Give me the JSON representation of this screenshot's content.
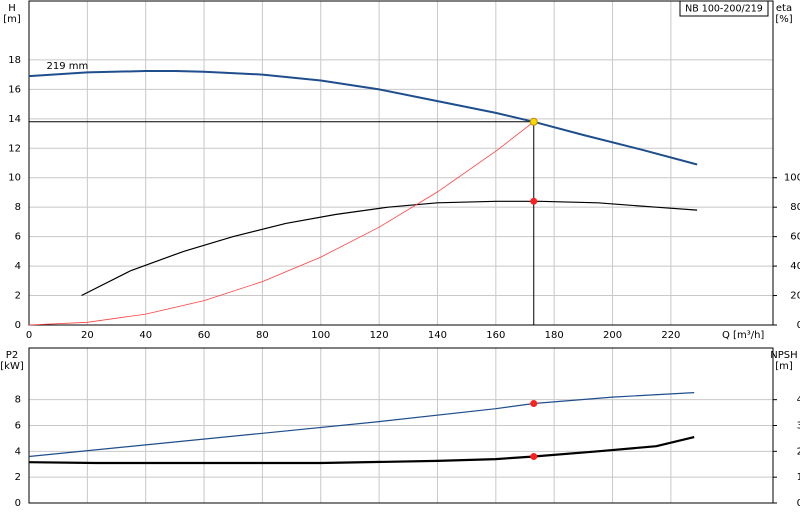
{
  "chart_data": [
    {
      "type": "line",
      "title": "NB 100-200/219",
      "x_label": "Q [m³/h]",
      "y_label": "H",
      "y_unit": "[m]",
      "y2_label": "eta",
      "y2_unit": "[%]",
      "annotation": {
        "text": "219 mm",
        "x": 6,
        "y": 17.6
      },
      "xlim": [
        0,
        255
      ],
      "xticks": [
        0,
        20,
        40,
        60,
        80,
        100,
        120,
        140,
        160,
        180,
        200,
        220
      ],
      "ylim": [
        0,
        22
      ],
      "yticks": [
        0,
        2,
        4,
        6,
        8,
        10,
        12,
        14,
        16,
        18
      ],
      "y2lim": [
        0,
        220
      ],
      "y2ticks": [
        0,
        20,
        40,
        60,
        80,
        100
      ],
      "grid": true,
      "series": [
        {
          "color": "#1f4e8c",
          "width": 2,
          "x": [
            0,
            20,
            40,
            50,
            60,
            80,
            100,
            120,
            140,
            160,
            173,
            190,
            210,
            229
          ],
          "values": [
            16.9,
            17.15,
            17.25,
            17.25,
            17.2,
            17.0,
            16.6,
            16.0,
            15.2,
            14.4,
            13.8,
            12.9,
            11.9,
            10.9
          ]
        },
        {
          "color": "#000000",
          "width": 1.2,
          "axis": "y2",
          "x": [
            18,
            35,
            53,
            70,
            88,
            105,
            123,
            140,
            160,
            175,
            195,
            215,
            229
          ],
          "values": [
            20,
            37,
            50,
            60,
            69,
            75,
            80,
            83,
            84,
            84,
            83,
            80,
            78
          ]
        },
        {
          "color": "#ff4040",
          "width": 0.8,
          "x": [
            0,
            20,
            40,
            60,
            80,
            100,
            120,
            140,
            160,
            173
          ],
          "values": [
            0,
            0.18,
            0.74,
            1.66,
            2.95,
            4.61,
            6.64,
            9.04,
            11.8,
            13.8
          ]
        }
      ],
      "duty_lines": {
        "x": 173,
        "y": 13.8
      },
      "points": [
        {
          "x": 173,
          "y": 13.8,
          "color": "#ffd700"
        },
        {
          "x": 173,
          "y": 84,
          "axis": "y2",
          "color": "#ff2020"
        }
      ]
    },
    {
      "type": "line",
      "y_label": "P2",
      "y_unit": "[kW]",
      "y2_label": "NPSH",
      "y2_unit": "[m]",
      "xlim": [
        0,
        255
      ],
      "xticks": [
        0,
        20,
        40,
        60,
        80,
        100,
        120,
        140,
        160,
        180,
        200,
        220
      ],
      "ylim": [
        0,
        12
      ],
      "yticks": [
        0,
        2,
        4,
        6,
        8
      ],
      "y2lim": [
        0,
        6
      ],
      "y2ticks": [
        0,
        1,
        2,
        3,
        4
      ],
      "grid": true,
      "series": [
        {
          "color": "#1f4e8c",
          "width": 1.2,
          "x": [
            0,
            40,
            80,
            120,
            160,
            173,
            200,
            228
          ],
          "values": [
            3.6,
            4.5,
            5.4,
            6.3,
            7.3,
            7.7,
            8.2,
            8.55
          ]
        },
        {
          "color": "#000000",
          "width": 2.2,
          "axis": "y2",
          "x": [
            0,
            23,
            60,
            100,
            140,
            160,
            173,
            195,
            215,
            228
          ],
          "values": [
            1.58,
            1.55,
            1.55,
            1.55,
            1.63,
            1.7,
            1.8,
            2.0,
            2.2,
            2.55
          ]
        }
      ],
      "points": [
        {
          "x": 173,
          "y": 7.7,
          "color": "#ff2020"
        },
        {
          "x": 173,
          "y": 1.8,
          "axis": "y2",
          "color": "#ff2020"
        }
      ]
    }
  ]
}
